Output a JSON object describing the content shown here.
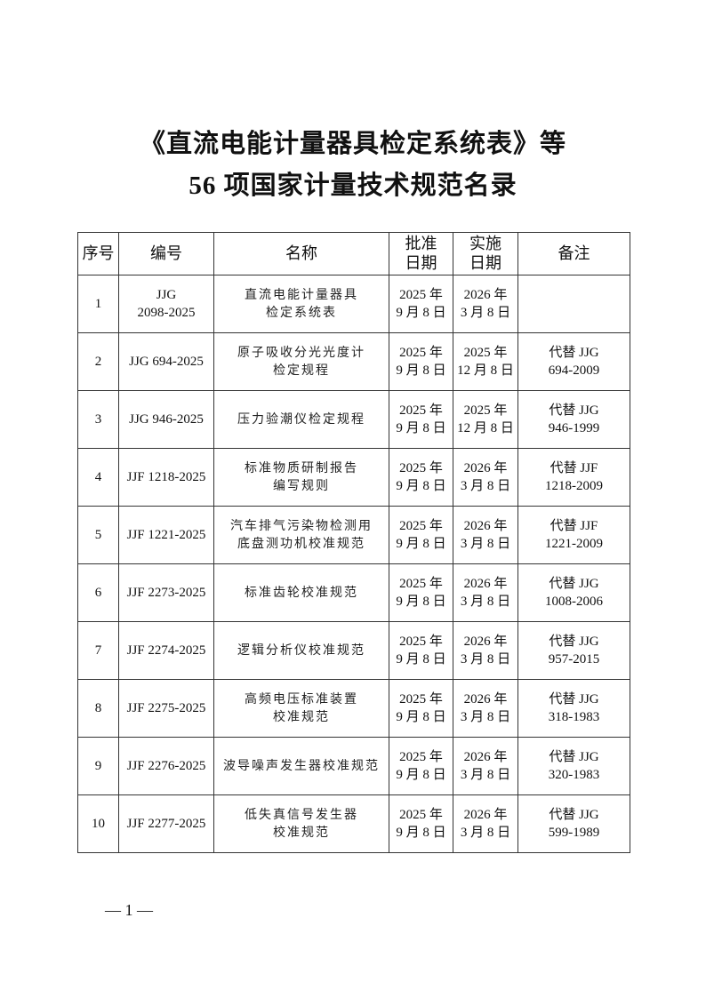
{
  "title": {
    "line1": "《直流电能计量器具检定系统表》等",
    "line2": "56 项国家计量技术规范名录"
  },
  "table": {
    "headers": [
      [
        "序号"
      ],
      [
        "编号"
      ],
      [
        "名称"
      ],
      [
        "批准",
        "日期"
      ],
      [
        "实施",
        "日期"
      ],
      [
        "备注"
      ]
    ],
    "rows": [
      {
        "no": "1",
        "code": [
          "JJG",
          "2098-2025"
        ],
        "name": [
          "直流电能计量器具",
          "检定系统表"
        ],
        "approve": [
          "2025 年",
          "9 月 8 日"
        ],
        "effective": [
          "2026 年",
          "3 月 8 日"
        ],
        "remark": []
      },
      {
        "no": "2",
        "code": [
          "JJG 694-2025"
        ],
        "name": [
          "原子吸收分光光度计",
          "检定规程"
        ],
        "approve": [
          "2025 年",
          "9 月 8 日"
        ],
        "effective": [
          "2025 年",
          "12 月 8 日"
        ],
        "remark": [
          "代替 JJG",
          "694-2009"
        ]
      },
      {
        "no": "3",
        "code": [
          "JJG 946-2025"
        ],
        "name": [
          "压力验潮仪检定规程"
        ],
        "approve": [
          "2025 年",
          "9 月 8 日"
        ],
        "effective": [
          "2025 年",
          "12 月 8 日"
        ],
        "remark": [
          "代替 JJG",
          "946-1999"
        ]
      },
      {
        "no": "4",
        "code": [
          "JJF 1218-2025"
        ],
        "name": [
          "标准物质研制报告",
          "编写规则"
        ],
        "approve": [
          "2025 年",
          "9 月 8 日"
        ],
        "effective": [
          "2026 年",
          "3 月 8 日"
        ],
        "remark": [
          "代替 JJF",
          "1218-2009"
        ]
      },
      {
        "no": "5",
        "code": [
          "JJF 1221-2025"
        ],
        "name": [
          "汽车排气污染物检测用",
          "底盘测功机校准规范"
        ],
        "approve": [
          "2025 年",
          "9 月 8 日"
        ],
        "effective": [
          "2026 年",
          "3 月 8 日"
        ],
        "remark": [
          "代替 JJF",
          "1221-2009"
        ]
      },
      {
        "no": "6",
        "code": [
          "JJF 2273-2025"
        ],
        "name": [
          "标准齿轮校准规范"
        ],
        "approve": [
          "2025 年",
          "9 月 8 日"
        ],
        "effective": [
          "2026 年",
          "3 月 8 日"
        ],
        "remark": [
          "代替 JJG",
          "1008-2006"
        ]
      },
      {
        "no": "7",
        "code": [
          "JJF 2274-2025"
        ],
        "name": [
          "逻辑分析仪校准规范"
        ],
        "approve": [
          "2025 年",
          "9 月 8 日"
        ],
        "effective": [
          "2026 年",
          "3 月 8 日"
        ],
        "remark": [
          "代替 JJG",
          "957-2015"
        ]
      },
      {
        "no": "8",
        "code": [
          "JJF 2275-2025"
        ],
        "name": [
          "高频电压标准装置",
          "校准规范"
        ],
        "approve": [
          "2025 年",
          "9 月 8 日"
        ],
        "effective": [
          "2026 年",
          "3 月 8 日"
        ],
        "remark": [
          "代替 JJG",
          "318-1983"
        ]
      },
      {
        "no": "9",
        "code": [
          "JJF 2276-2025"
        ],
        "name": [
          "波导噪声发生器校准规范"
        ],
        "approve": [
          "2025 年",
          "9 月 8 日"
        ],
        "effective": [
          "2026 年",
          "3 月 8 日"
        ],
        "remark": [
          "代替 JJG",
          "320-1983"
        ]
      },
      {
        "no": "10",
        "code": [
          "JJF 2277-2025"
        ],
        "name": [
          "低失真信号发生器",
          "校准规范"
        ],
        "approve": [
          "2025 年",
          "9 月 8 日"
        ],
        "effective": [
          "2026 年",
          "3 月 8 日"
        ],
        "remark": [
          "代替 JJG",
          "599-1989"
        ]
      }
    ]
  },
  "footer": {
    "page": "— 1 —"
  }
}
